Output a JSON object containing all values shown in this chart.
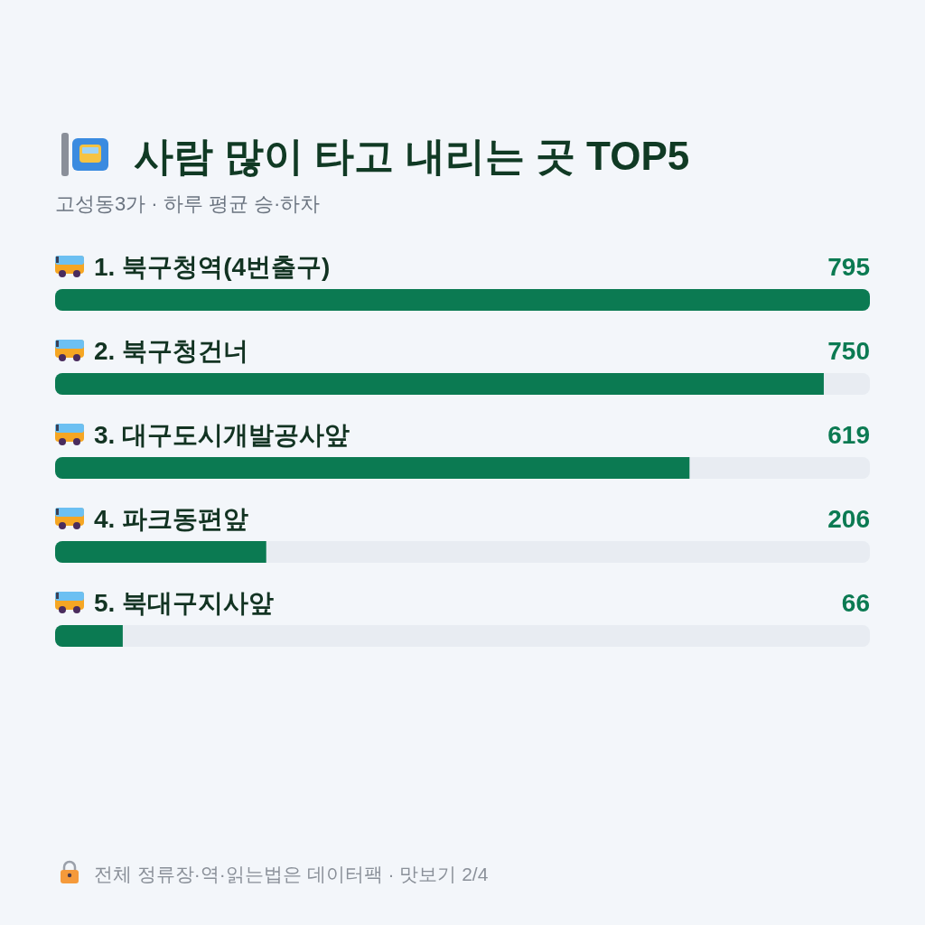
{
  "chart_data": {
    "type": "bar",
    "orientation": "horizontal",
    "title": "사람 많이 타고 내리는 곳 TOP5",
    "subtitle": "고성동3가 · 하루 평균 승·하차",
    "categories": [
      "1. 북구청역(4번출구)",
      "2. 북구청건너",
      "3. 대구도시개발공사앞",
      "4. 파크동편앞",
      "5. 북대구지사앞"
    ],
    "values": [
      795,
      750,
      619,
      206,
      66
    ],
    "color": "#0b7a52",
    "xlim": [
      0,
      795
    ],
    "data_labels": true,
    "tick_labels": "y",
    "annotations": [
      "전체 정류장·역·읽는법은 데이터팩 · 맛보기 2/4"
    ]
  }
}
